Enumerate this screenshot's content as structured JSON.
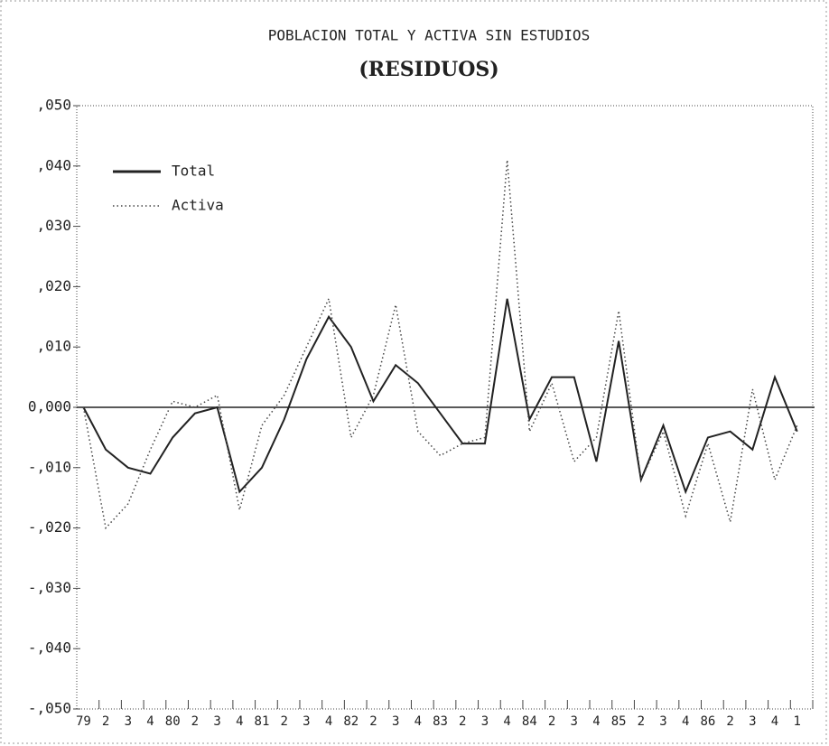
{
  "chart_data": {
    "type": "line",
    "title": "POBLACION TOTAL Y ACTIVA SIN ESTUDIOS",
    "subtitle": "(RESIDUOS)",
    "categories": [
      "79",
      "2",
      "3",
      "4",
      "80",
      "2",
      "3",
      "4",
      "81",
      "2",
      "3",
      "4",
      "82",
      "2",
      "3",
      "4",
      "83",
      "2",
      "3",
      "4",
      "84",
      "2",
      "3",
      "4",
      "85",
      "2",
      "3",
      "4",
      "86",
      "2",
      "3",
      "4",
      "1"
    ],
    "series": [
      {
        "name": "Total",
        "color": "#222222",
        "style": "solid",
        "values": [
          0.0,
          -0.007,
          -0.01,
          -0.011,
          -0.005,
          -0.001,
          0.0,
          -0.014,
          -0.01,
          -0.002,
          0.008,
          0.015,
          0.01,
          0.001,
          0.007,
          0.004,
          -0.001,
          -0.006,
          -0.006,
          0.018,
          -0.002,
          0.005,
          0.005,
          -0.009,
          0.011,
          -0.012,
          -0.003,
          -0.014,
          -0.005,
          -0.004,
          -0.007,
          0.005,
          -0.004
        ]
      },
      {
        "name": "Activa",
        "color": "#444444",
        "style": "dotted",
        "values": [
          0.0,
          -0.02,
          -0.016,
          -0.007,
          0.001,
          0.0,
          0.002,
          -0.017,
          -0.003,
          0.002,
          0.01,
          0.018,
          -0.005,
          0.002,
          0.017,
          -0.004,
          -0.008,
          -0.006,
          -0.005,
          0.041,
          -0.004,
          0.004,
          -0.009,
          -0.005,
          0.016,
          -0.012,
          -0.004,
          -0.018,
          -0.006,
          -0.019,
          0.003,
          -0.012,
          -0.003
        ]
      }
    ],
    "ylim": [
      -0.05,
      0.05
    ],
    "yticks": [
      {
        "value": -0.05,
        "label": "-,050"
      },
      {
        "value": -0.04,
        "label": "-,040"
      },
      {
        "value": -0.03,
        "label": "-,030"
      },
      {
        "value": -0.02,
        "label": "-,020"
      },
      {
        "value": -0.01,
        "label": "-,010"
      },
      {
        "value": 0,
        "label": "0,000"
      },
      {
        "value": 0.01,
        "label": ",010"
      },
      {
        "value": 0.02,
        "label": ",020"
      },
      {
        "value": 0.03,
        "label": ",030"
      },
      {
        "value": 0.04,
        "label": ",040"
      },
      {
        "value": 0.05,
        "label": ",050"
      }
    ],
    "zero_line": true,
    "legend": "upper left"
  }
}
